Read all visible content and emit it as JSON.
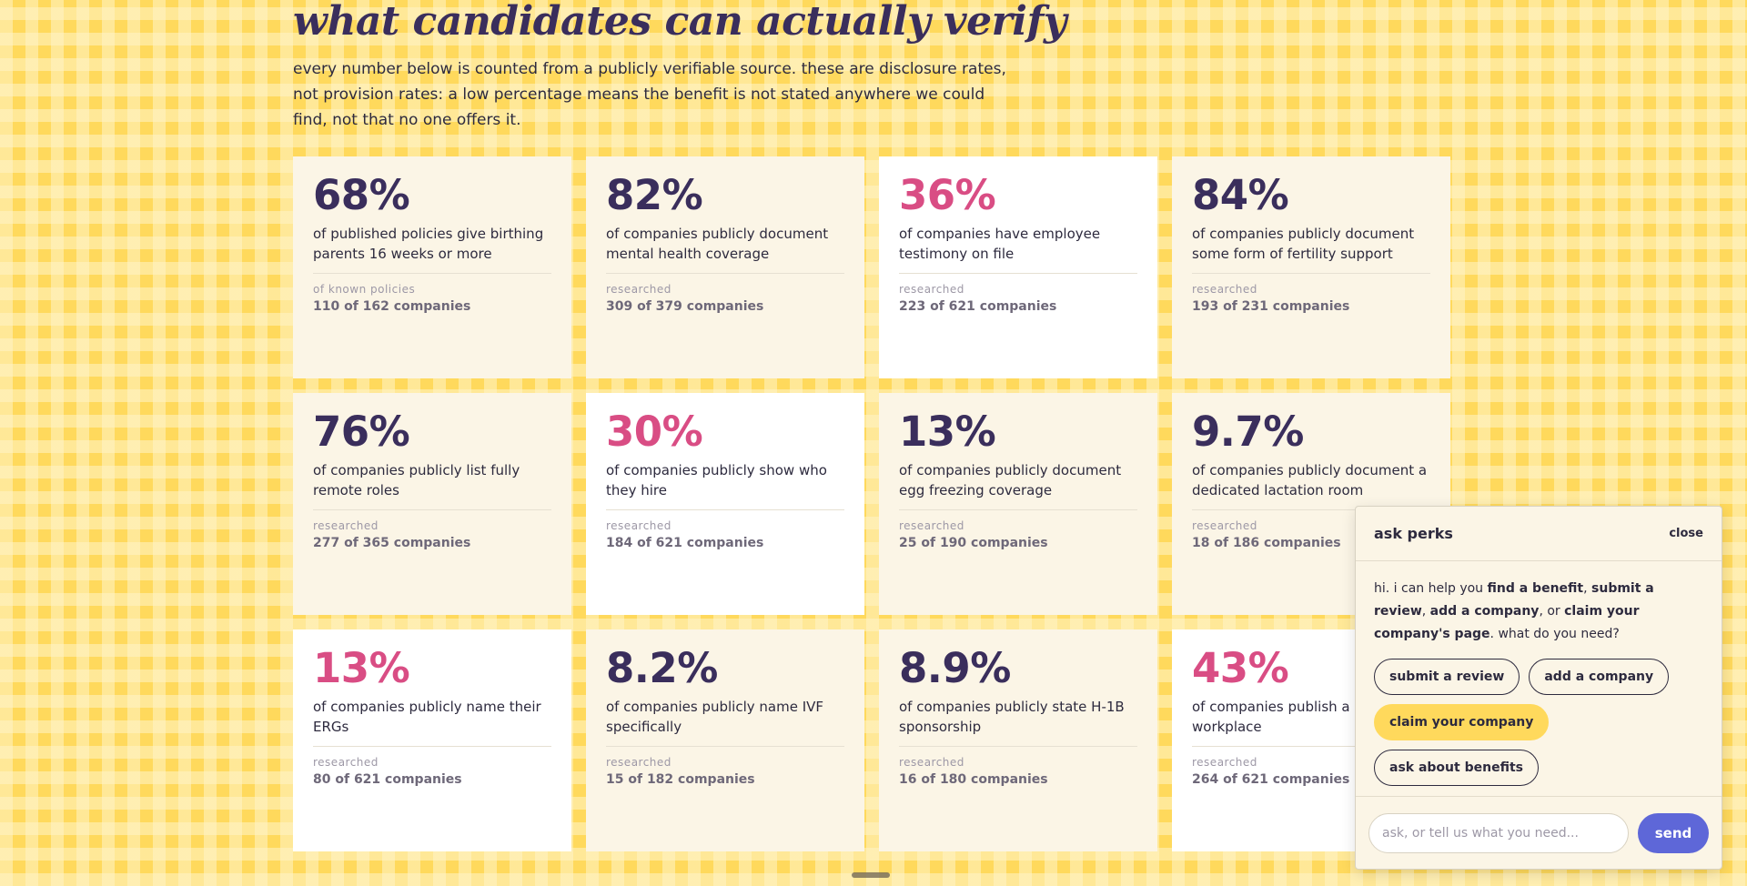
{
  "section": {
    "title": "what candidates can actually verify",
    "intro": "every number below is counted from a publicly verifiable source. these are disclosure rates, not provision rates: a low percentage means the benefit is not stated anywhere we could find, not that no one offers it."
  },
  "stats": [
    {
      "value": "68%",
      "description": "of published policies give birthing parents 16 weeks or more",
      "source": "of known policies",
      "count": "110 of 162 companies",
      "accent": "navy",
      "card": "cream"
    },
    {
      "value": "82%",
      "description": "of companies publicly document mental health coverage",
      "source": "researched",
      "count": "309 of 379 companies",
      "accent": "navy",
      "card": "cream"
    },
    {
      "value": "36%",
      "description": "of companies have employee testimony on file",
      "source": "researched",
      "count": "223 of 621 companies",
      "accent": "pink",
      "card": "white"
    },
    {
      "value": "84%",
      "description": "of companies publicly document some form of fertility support",
      "source": "researched",
      "count": "193 of 231 companies",
      "accent": "navy",
      "card": "cream"
    },
    {
      "value": "76%",
      "description": "of companies publicly list fully remote roles",
      "source": "researched",
      "count": "277 of 365 companies",
      "accent": "navy",
      "card": "cream"
    },
    {
      "value": "30%",
      "description": "of companies publicly show who they hire",
      "source": "researched",
      "count": "184 of 621 companies",
      "accent": "pink",
      "card": "white"
    },
    {
      "value": "13%",
      "description": "of companies publicly document egg freezing coverage",
      "source": "researched",
      "count": "25 of 190 companies",
      "accent": "navy",
      "card": "cream"
    },
    {
      "value": "9.7%",
      "description": "of companies publicly document a dedicated lactation room",
      "source": "researched",
      "count": "18 of 186 companies",
      "accent": "navy",
      "card": "cream"
    },
    {
      "value": "13%",
      "description": "of companies publicly name their ERGs",
      "source": "researched",
      "count": "80 of 621 companies",
      "accent": "pink",
      "card": "white"
    },
    {
      "value": "8.2%",
      "description": "of companies publicly name IVF specifically",
      "source": "researched",
      "count": "15 of 182 companies",
      "accent": "navy",
      "card": "cream"
    },
    {
      "value": "8.9%",
      "description": "of companies publicly state H-1B sponsorship",
      "source": "researched",
      "count": "16 of 180 companies",
      "accent": "navy",
      "card": "cream"
    },
    {
      "value": "43%",
      "description": "of companies publish a re the workplace",
      "source": "researched",
      "count": "264 of 621 companies",
      "accent": "pink",
      "card": "white"
    }
  ],
  "chat": {
    "title": "ask perks",
    "close_label": "close",
    "message": {
      "greeting": "hi. i can help you ",
      "action_1": "find a benefit",
      "sep_1": ", ",
      "action_2": "submit a review",
      "sep_2": ", ",
      "action_3": "add a company",
      "sep_3": ", or ",
      "action_4": "claim your company's page",
      "closing": ". what do you need?"
    },
    "chips": {
      "submit_review": "submit a review",
      "add_company": "add a company",
      "claim_company": "claim your company",
      "ask_benefits": "ask about benefits"
    },
    "input_placeholder": "ask, or tell us what you need...",
    "send_label": "send"
  },
  "colors": {
    "navy": "#3a2e5c",
    "pink": "#d94d84",
    "background": "#ffd95c",
    "send": "#5e67d8"
  }
}
